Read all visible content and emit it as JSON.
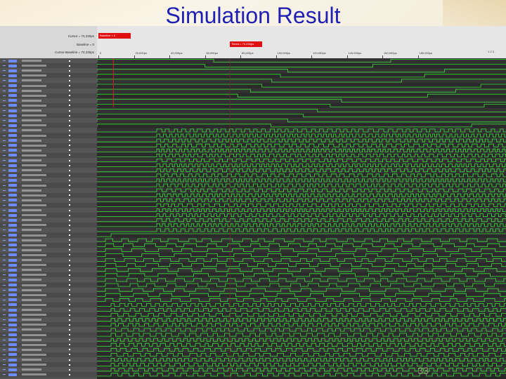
{
  "slide": {
    "title": "Simulation Result",
    "page_number": "33"
  },
  "cursor_panel": {
    "cursor": "Cursor = 74,230ps",
    "baseline": "Baseline = 0",
    "cursor_baseline": "Cursor-Baseline = 74,230ps"
  },
  "ruler": {
    "baseline_marker": "Baseline = 0",
    "timea_marker": "TimeA = 74,230ps",
    "ticks": [
      "0",
      "20,000ps",
      "40,000ps",
      "60,000ps",
      "80,000ps",
      "100,000ps",
      "120,000ps",
      "140,000ps",
      "160,000ps",
      "180,000ps"
    ],
    "nav": "1 2 3 ."
  },
  "colors": {
    "title": "#1f1fb4",
    "wave_line": "#3fe03f",
    "marker": "#e01010",
    "wave_bg": "#262626"
  }
}
